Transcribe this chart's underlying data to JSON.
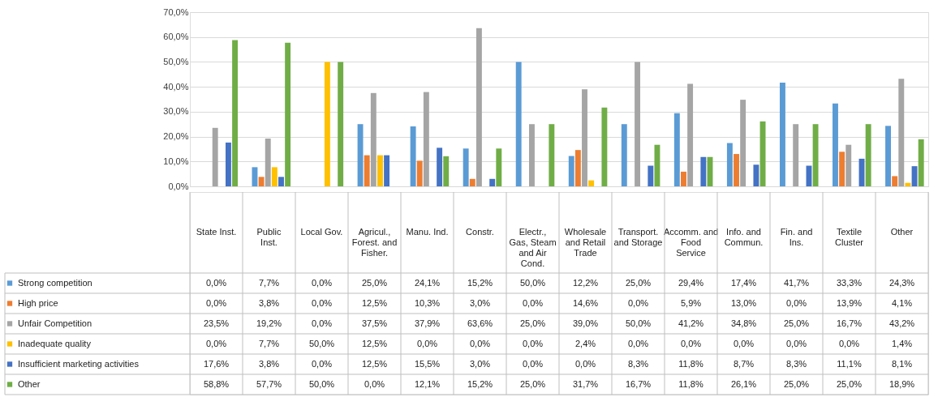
{
  "chart_data": {
    "type": "bar",
    "categories": [
      "State Inst.",
      "Public Inst.",
      "Local Gov.",
      "Agricul., Forest. and Fisher.",
      "Manu. Ind.",
      "Constr.",
      "Electr., Gas, Steam and Air Cond.",
      "Wholesale and Retail Trade",
      "Transport. and Storage",
      "Accomm. and Food Service",
      "Info. and Commun.",
      "Fin. and Ins.",
      "Textile Cluster",
      "Other"
    ],
    "series": [
      {
        "name": "Strong competition",
        "color": "#5b9bd5",
        "values": [
          0.0,
          7.7,
          0.0,
          25.0,
          24.1,
          15.2,
          50.0,
          12.2,
          25.0,
          29.4,
          17.4,
          41.7,
          33.3,
          24.3
        ],
        "value_labels": [
          "0,0%",
          "7,7%",
          "0,0%",
          "25,0%",
          "24,1%",
          "15,2%",
          "50,0%",
          "12,2%",
          "25,0%",
          "29,4%",
          "17,4%",
          "41,7%",
          "33,3%",
          "24,3%"
        ]
      },
      {
        "name": "High price",
        "color": "#ed7d31",
        "values": [
          0.0,
          3.8,
          0.0,
          12.5,
          10.3,
          3.0,
          0.0,
          14.6,
          0.0,
          5.9,
          13.0,
          0.0,
          13.9,
          4.1
        ],
        "value_labels": [
          "0,0%",
          "3,8%",
          "0,0%",
          "12,5%",
          "10,3%",
          "3,0%",
          "0,0%",
          "14,6%",
          "0,0%",
          "5,9%",
          "13,0%",
          "0,0%",
          "13,9%",
          "4,1%"
        ]
      },
      {
        "name": "Unfair Competition",
        "color": "#a5a5a5",
        "values": [
          23.5,
          19.2,
          0.0,
          37.5,
          37.9,
          63.6,
          25.0,
          39.0,
          50.0,
          41.2,
          34.8,
          25.0,
          16.7,
          43.2
        ],
        "value_labels": [
          "23,5%",
          "19,2%",
          "0,0%",
          "37,5%",
          "37,9%",
          "63,6%",
          "25,0%",
          "39,0%",
          "50,0%",
          "41,2%",
          "34,8%",
          "25,0%",
          "16,7%",
          "43,2%"
        ]
      },
      {
        "name": "Inadequate quality",
        "color": "#ffc000",
        "values": [
          0.0,
          7.7,
          50.0,
          12.5,
          0.0,
          0.0,
          0.0,
          2.4,
          0.0,
          0.0,
          0.0,
          0.0,
          0.0,
          1.4
        ],
        "value_labels": [
          "0,0%",
          "7,7%",
          "50,0%",
          "12,5%",
          "0,0%",
          "0,0%",
          "0,0%",
          "2,4%",
          "0,0%",
          "0,0%",
          "0,0%",
          "0,0%",
          "0,0%",
          "1,4%"
        ]
      },
      {
        "name": "Insufficient marketing activities",
        "color": "#4472c4",
        "values": [
          17.6,
          3.8,
          0.0,
          12.5,
          15.5,
          3.0,
          0.0,
          0.0,
          8.3,
          11.8,
          8.7,
          8.3,
          11.1,
          8.1
        ],
        "value_labels": [
          "17,6%",
          "3,8%",
          "0,0%",
          "12,5%",
          "15,5%",
          "3,0%",
          "0,0%",
          "0,0%",
          "8,3%",
          "11,8%",
          "8,7%",
          "8,3%",
          "11,1%",
          "8,1%"
        ]
      },
      {
        "name": "Other",
        "color": "#70ad47",
        "values": [
          58.8,
          57.7,
          50.0,
          0.0,
          12.1,
          15.2,
          25.0,
          31.7,
          16.7,
          11.8,
          26.1,
          25.0,
          25.0,
          18.9
        ],
        "value_labels": [
          "58,8%",
          "57,7%",
          "50,0%",
          "0,0%",
          "12,1%",
          "15,2%",
          "25,0%",
          "31,7%",
          "16,7%",
          "11,8%",
          "26,1%",
          "25,0%",
          "25,0%",
          "18,9%"
        ]
      }
    ],
    "ylim": [
      0,
      70
    ],
    "yticks": [
      {
        "value": 0,
        "label": "0,0%"
      },
      {
        "value": 10,
        "label": "10,0%"
      },
      {
        "value": 20,
        "label": "20,0%"
      },
      {
        "value": 30,
        "label": "30,0%"
      },
      {
        "value": 40,
        "label": "40,0%"
      },
      {
        "value": 50,
        "label": "50,0%"
      },
      {
        "value": 60,
        "label": "60,0%"
      },
      {
        "value": 70,
        "label": "70,0%"
      }
    ],
    "grid": "y",
    "legend": "bottom"
  }
}
